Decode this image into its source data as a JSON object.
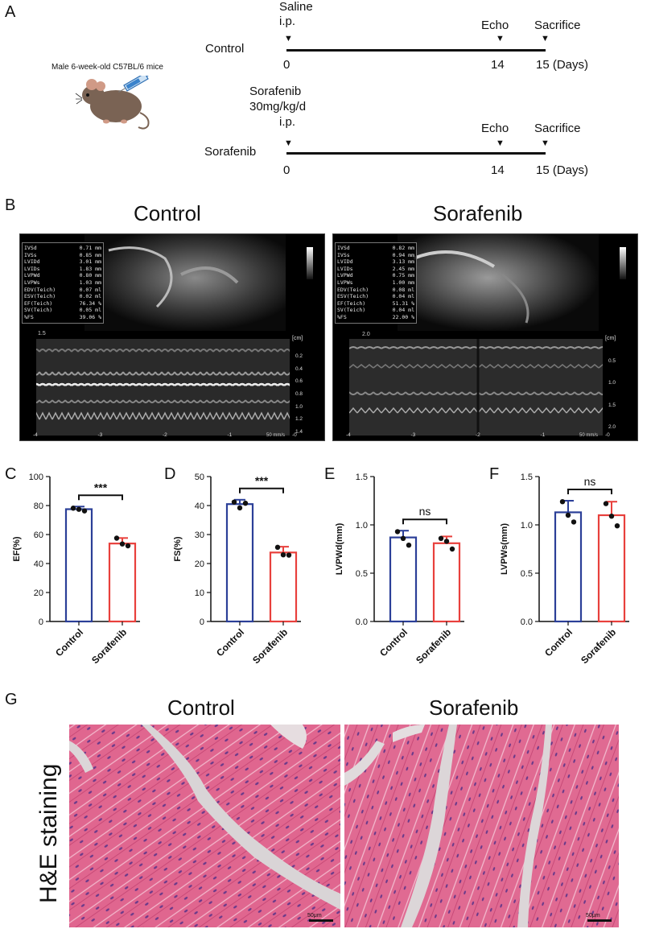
{
  "panel_a": {
    "letter": "A",
    "mouse_label": "Male 6-week-old C57BL/6 mice",
    "control": {
      "group": "Control",
      "treatment_lines": [
        "Saline",
        "i.p."
      ],
      "echo": "Echo",
      "sacrifice": "Sacrifice",
      "day0": "0",
      "day14": "14",
      "day15": "15 (Days)"
    },
    "sorafenib": {
      "group": "Sorafenib",
      "treatment_lines": [
        "Sorafenib",
        "30mg/kg/d",
        "i.p."
      ],
      "echo": "Echo",
      "sacrifice": "Sacrifice",
      "day0": "0",
      "day14": "14",
      "day15": "15 (Days)"
    }
  },
  "panel_b": {
    "letter": "B",
    "control_title": "Control",
    "sorafenib_title": "Sorafenib",
    "control_measurements": [
      [
        "IVSd",
        "0.71 mm"
      ],
      [
        "IVSs",
        "0.85 mm"
      ],
      [
        "LVIDd",
        "3.01 mm"
      ],
      [
        "LVIDs",
        "1.83 mm"
      ],
      [
        "LVPWd",
        "0.80 mm"
      ],
      [
        "LVPWs",
        "1.03 mm"
      ],
      [
        "EDV(Teich)",
        "0.07 ml"
      ],
      [
        "ESV(Teich)",
        "0.02 ml"
      ],
      [
        "EF(Teich)",
        "76.34 %"
      ],
      [
        "SV(Teich)",
        "0.05 ml"
      ],
      [
        "%FS",
        "39.06 %"
      ]
    ],
    "sorafenib_measurements": [
      [
        "IVSd",
        "0.82 mm"
      ],
      [
        "IVSs",
        "0.94 mm"
      ],
      [
        "LVIDd",
        "3.13 mm"
      ],
      [
        "LVIDs",
        "2.45 mm"
      ],
      [
        "LVPWd",
        "0.75 mm"
      ],
      [
        "LVPWs",
        "1.00 mm"
      ],
      [
        "EDV(Teich)",
        "0.08 ml"
      ],
      [
        "ESV(Teich)",
        "0.04 ml"
      ],
      [
        "EF(Teich)",
        "51.31 %"
      ],
      [
        "SV(Teich)",
        "0.04 ml"
      ],
      [
        "%FS",
        "22.00 %"
      ]
    ],
    "control_depth_ticks": [
      "0.2",
      "0.4",
      "0.6",
      "0.8",
      "1.0",
      "1.2",
      "1.4"
    ],
    "sorafenib_depth_ticks": [
      "0.5",
      "1.0",
      "1.5",
      "2.0"
    ],
    "time_ticks": [
      "-4",
      "-3",
      "-2",
      "-1",
      "-0"
    ],
    "unit_cm": "[cm]",
    "speed_label": "50 mm/s",
    "control_scale_top": "1.5",
    "sorafenib_scale_top": "2.0"
  },
  "chart_data": [
    {
      "panel": "C",
      "type": "bar",
      "ylabel": "EF(%)",
      "ylim": [
        0,
        100
      ],
      "yticks": [
        "0",
        "20",
        "40",
        "60",
        "80",
        "100"
      ],
      "categories": [
        "Control",
        "Sorafenib"
      ],
      "values": [
        77.5,
        53.8
      ],
      "errors": [
        1.8,
        3.8
      ],
      "points": [
        [
          78.2,
          77.4,
          76.3
        ],
        [
          57.5,
          53.5,
          52.2
        ]
      ],
      "colors": [
        "#2b3f98",
        "#e8403c"
      ],
      "significance": "***"
    },
    {
      "panel": "D",
      "type": "bar",
      "ylabel": "FS(%)",
      "ylim": [
        0,
        50
      ],
      "yticks": [
        "0",
        "10",
        "20",
        "30",
        "40",
        "50"
      ],
      "categories": [
        "Control",
        "Sorafenib"
      ],
      "values": [
        40.5,
        23.8
      ],
      "errors": [
        1.5,
        2.0
      ],
      "points": [
        [
          41.2,
          39.2,
          40.8
        ],
        [
          25.6,
          23.0,
          22.9
        ]
      ],
      "colors": [
        "#2b3f98",
        "#e8403c"
      ],
      "significance": "***"
    },
    {
      "panel": "E",
      "type": "bar",
      "ylabel": "LVPWd(mm)",
      "ylim": [
        0,
        1.5
      ],
      "yticks": [
        "0.0",
        "0.5",
        "1.0",
        "1.5"
      ],
      "categories": [
        "Control",
        "Sorafenib"
      ],
      "values": [
        0.87,
        0.81
      ],
      "errors": [
        0.07,
        0.07
      ],
      "points": [
        [
          0.93,
          0.86,
          0.79
        ],
        [
          0.86,
          0.83,
          0.75
        ]
      ],
      "colors": [
        "#2b3f98",
        "#e8403c"
      ],
      "significance": "ns"
    },
    {
      "panel": "F",
      "type": "bar",
      "ylabel": "LVPWs(mm)",
      "ylim": [
        0,
        1.5
      ],
      "yticks": [
        "0.0",
        "0.5",
        "1.0",
        "1.5"
      ],
      "categories": [
        "Control",
        "Sorafenib"
      ],
      "values": [
        1.13,
        1.1
      ],
      "errors": [
        0.12,
        0.14
      ],
      "points": [
        [
          1.24,
          1.1,
          1.03
        ],
        [
          1.22,
          1.09,
          0.99
        ]
      ],
      "colors": [
        "#2b3f98",
        "#e8403c"
      ],
      "significance": "ns"
    }
  ],
  "panel_g": {
    "letter": "G",
    "control_title": "Control",
    "sorafenib_title": "Sorafenib",
    "row_label": "H&E staining",
    "scale_bar": "50μm"
  }
}
